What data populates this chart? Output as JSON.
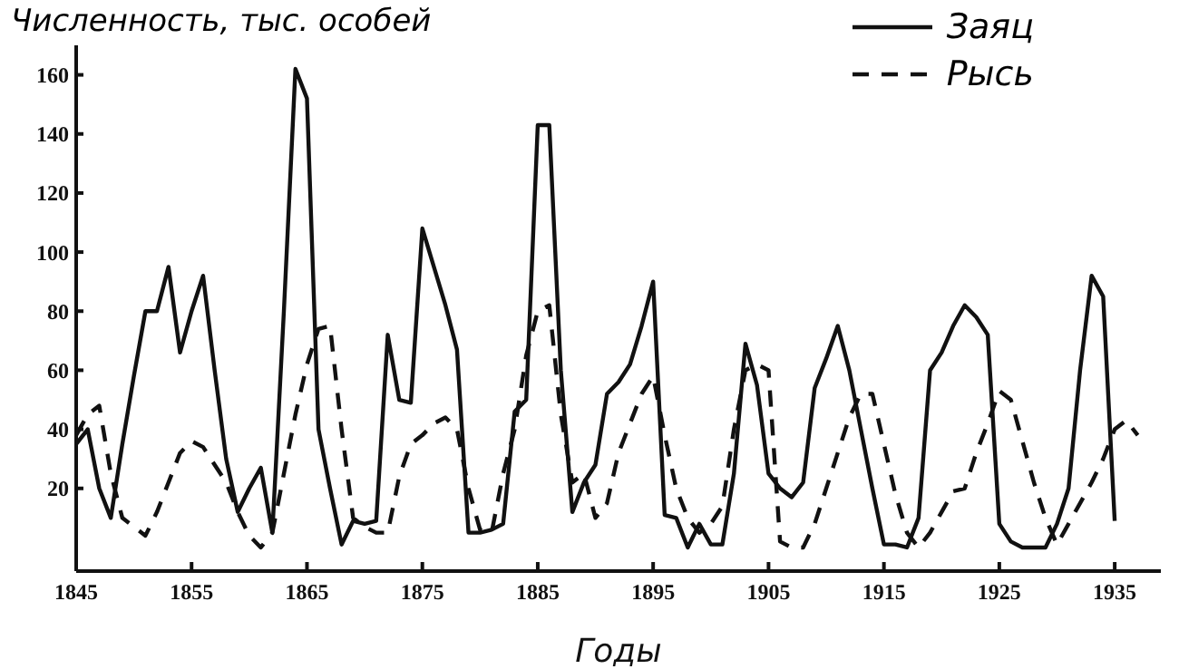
{
  "chart_data": {
    "type": "line",
    "xlabel": "Годы",
    "ylabel": "Численность, тыс. особей",
    "xlim": [
      1845,
      1939
    ],
    "xticks": [
      1845,
      1855,
      1865,
      1875,
      1885,
      1895,
      1905,
      1915,
      1925,
      1935
    ],
    "ylim": [
      -8,
      170
    ],
    "yticks": [
      20,
      40,
      60,
      80,
      100,
      120,
      140,
      160
    ],
    "legend": "top right",
    "marker": "none",
    "series": [
      {
        "name": "Заяц",
        "color": "#111111",
        "line_style": "solid",
        "x": [
          1845,
          1846,
          1847,
          1848,
          1849,
          1850,
          1851,
          1852,
          1853,
          1854,
          1855,
          1856,
          1857,
          1858,
          1859,
          1860,
          1861,
          1862,
          1863,
          1864,
          1865,
          1866,
          1867,
          1868,
          1869,
          1870,
          1871,
          1872,
          1873,
          1874,
          1875,
          1876,
          1877,
          1878,
          1879,
          1880,
          1881,
          1882,
          1883,
          1884,
          1885,
          1886,
          1887,
          1888,
          1889,
          1890,
          1891,
          1892,
          1893,
          1894,
          1895,
          1896,
          1897,
          1898,
          1899,
          1900,
          1901,
          1902,
          1903,
          1904,
          1905,
          1906,
          1907,
          1908,
          1909,
          1910,
          1911,
          1912,
          1913,
          1914,
          1915,
          1916,
          1917,
          1918,
          1919,
          1920,
          1921,
          1922,
          1923,
          1924,
          1925,
          1926,
          1927,
          1928,
          1929,
          1930,
          1931,
          1932,
          1933,
          1934,
          1935
        ],
        "values": [
          35,
          40,
          20,
          10,
          35,
          58,
          80,
          80,
          95,
          66,
          80,
          92,
          60,
          30,
          12,
          20,
          27,
          5,
          80,
          162,
          152,
          40,
          20,
          1,
          9,
          8,
          9,
          72,
          50,
          49,
          108,
          95,
          82,
          67,
          5,
          5,
          6,
          8,
          46,
          50,
          143,
          143,
          60,
          12,
          22,
          28,
          52,
          56,
          62,
          75,
          90,
          11,
          10,
          0,
          8,
          1,
          1,
          25,
          69,
          55,
          25,
          20,
          17,
          22,
          54,
          64,
          75,
          60,
          40,
          20,
          1,
          1,
          0,
          10,
          60,
          66,
          75,
          82,
          78,
          72,
          8,
          2,
          0,
          0,
          0,
          8,
          20,
          60,
          92,
          85,
          9
        ]
      },
      {
        "name": "Рысь",
        "color": "#111111",
        "line_style": "dashed",
        "x": [
          1845,
          1846,
          1847,
          1848,
          1849,
          1850,
          1851,
          1852,
          1853,
          1854,
          1855,
          1856,
          1857,
          1858,
          1859,
          1860,
          1861,
          1862,
          1863,
          1864,
          1865,
          1866,
          1867,
          1868,
          1869,
          1870,
          1871,
          1872,
          1873,
          1874,
          1875,
          1876,
          1877,
          1878,
          1879,
          1880,
          1881,
          1882,
          1883,
          1884,
          1885,
          1886,
          1887,
          1888,
          1889,
          1890,
          1891,
          1892,
          1893,
          1894,
          1895,
          1896,
          1897,
          1898,
          1899,
          1900,
          1901,
          1902,
          1903,
          1904,
          1905,
          1906,
          1907,
          1908,
          1909,
          1910,
          1911,
          1912,
          1913,
          1914,
          1915,
          1916,
          1917,
          1918,
          1919,
          1920,
          1921,
          1922,
          1923,
          1924,
          1925,
          1926,
          1927,
          1928,
          1929,
          1930,
          1931,
          1932,
          1933,
          1934,
          1935,
          1936,
          1937
        ],
        "values": [
          38,
          45,
          48,
          25,
          10,
          7,
          4,
          12,
          22,
          32,
          36,
          34,
          28,
          22,
          12,
          4,
          0,
          5,
          25,
          45,
          62,
          74,
          75,
          40,
          10,
          7,
          5,
          5,
          24,
          35,
          38,
          42,
          44,
          40,
          20,
          6,
          5,
          25,
          40,
          65,
          80,
          82,
          45,
          22,
          25,
          10,
          15,
          32,
          42,
          52,
          58,
          38,
          20,
          10,
          5,
          8,
          14,
          40,
          60,
          62,
          60,
          2,
          0,
          0,
          8,
          20,
          32,
          44,
          52,
          52,
          35,
          18,
          5,
          0,
          5,
          12,
          19,
          20,
          32,
          42,
          53,
          50,
          36,
          22,
          10,
          1,
          8,
          15,
          22,
          30,
          40,
          43,
          38
        ]
      }
    ]
  }
}
